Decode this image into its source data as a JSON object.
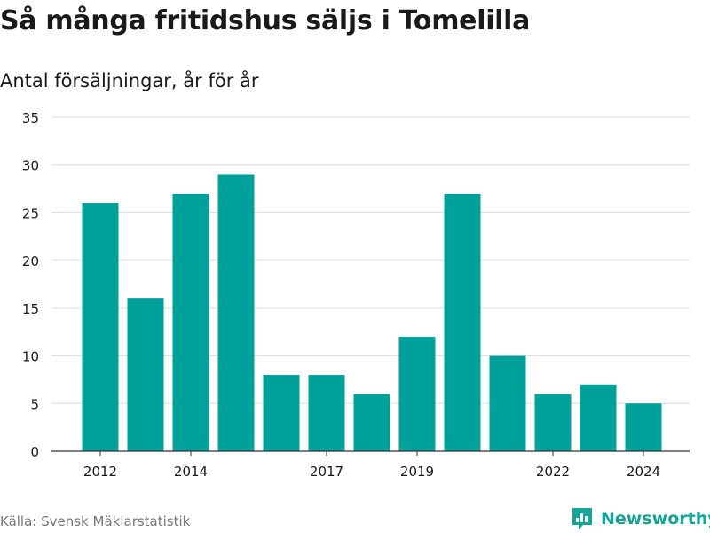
{
  "title": "Så många fritidshus säljs i Tomelilla",
  "subtitle": "Antal försäljningar, år för år",
  "source": "Källa: Svensk Mäklarstatistik",
  "brand": {
    "name": "Newsworthy",
    "icon": "newsworthy-logo-icon"
  },
  "colors": {
    "bar": "#00a19a",
    "grid": "#dddddd",
    "text": "#1a1a1a",
    "brand": "#17a39a"
  },
  "chart_data": {
    "type": "bar",
    "categories": [
      "2012",
      "2013",
      "2014",
      "2015",
      "2016",
      "2017",
      "2018",
      "2019",
      "2020",
      "2021",
      "2022",
      "2023",
      "2024"
    ],
    "values": [
      26,
      16,
      27,
      29,
      8,
      8,
      6,
      12,
      27,
      10,
      6,
      7,
      5
    ],
    "x_tick_labels": [
      "2012",
      "2014",
      "2017",
      "2019",
      "2022",
      "2024"
    ],
    "y_ticks": [
      0,
      5,
      10,
      15,
      20,
      25,
      30,
      35
    ],
    "ylim": [
      0,
      35
    ],
    "grid": true,
    "legend": "none"
  }
}
